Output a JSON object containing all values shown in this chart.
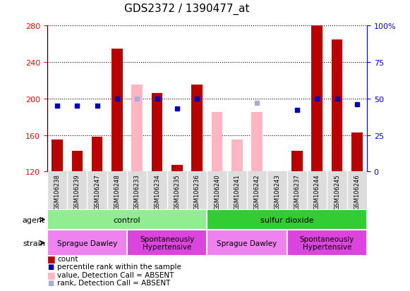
{
  "title": "GDS2372 / 1390477_at",
  "samples": [
    "GSM106238",
    "GSM106239",
    "GSM106247",
    "GSM106248",
    "GSM106233",
    "GSM106234",
    "GSM106235",
    "GSM106236",
    "GSM106240",
    "GSM106241",
    "GSM106242",
    "GSM106243",
    "GSM106237",
    "GSM106244",
    "GSM106245",
    "GSM106246"
  ],
  "count_values": [
    155,
    143,
    158,
    255,
    null,
    206,
    127,
    215,
    null,
    null,
    null,
    null,
    143,
    280,
    265,
    163
  ],
  "count_absent": [
    null,
    null,
    null,
    null,
    215,
    null,
    null,
    null,
    185,
    155,
    185,
    null,
    null,
    null,
    null,
    null
  ],
  "rank_values": [
    45,
    45,
    45,
    50,
    null,
    50,
    43,
    50,
    null,
    null,
    null,
    null,
    42,
    50,
    50,
    46
  ],
  "rank_absent": [
    null,
    null,
    null,
    null,
    50,
    null,
    null,
    null,
    null,
    null,
    47,
    null,
    null,
    null,
    null,
    null
  ],
  "agent_groups": [
    {
      "label": "control",
      "start": 0,
      "end": 8,
      "color": "#90ee90"
    },
    {
      "label": "sulfur dioxide",
      "start": 8,
      "end": 16,
      "color": "#33cc33"
    }
  ],
  "strain_groups": [
    {
      "label": "Sprague Dawley",
      "start": 0,
      "end": 4,
      "color": "#ee82ee"
    },
    {
      "label": "Spontaneously\nHypertensive",
      "start": 4,
      "end": 8,
      "color": "#dd44dd"
    },
    {
      "label": "Sprague Dawley",
      "start": 8,
      "end": 12,
      "color": "#ee82ee"
    },
    {
      "label": "Spontaneously\nHypertensive",
      "start": 12,
      "end": 16,
      "color": "#dd44dd"
    }
  ],
  "ylim_left": [
    120,
    280
  ],
  "ylim_right": [
    0,
    100
  ],
  "yticks_left": [
    120,
    160,
    200,
    240,
    280
  ],
  "yticks_right": [
    0,
    25,
    50,
    75,
    100
  ],
  "bar_color": "#bb0000",
  "bar_absent_color": "#ffb6c1",
  "rank_color": "#0000bb",
  "rank_absent_color": "#aaaadd",
  "bar_width": 0.55,
  "figsize": [
    5.81,
    4.14
  ],
  "dpi": 100
}
